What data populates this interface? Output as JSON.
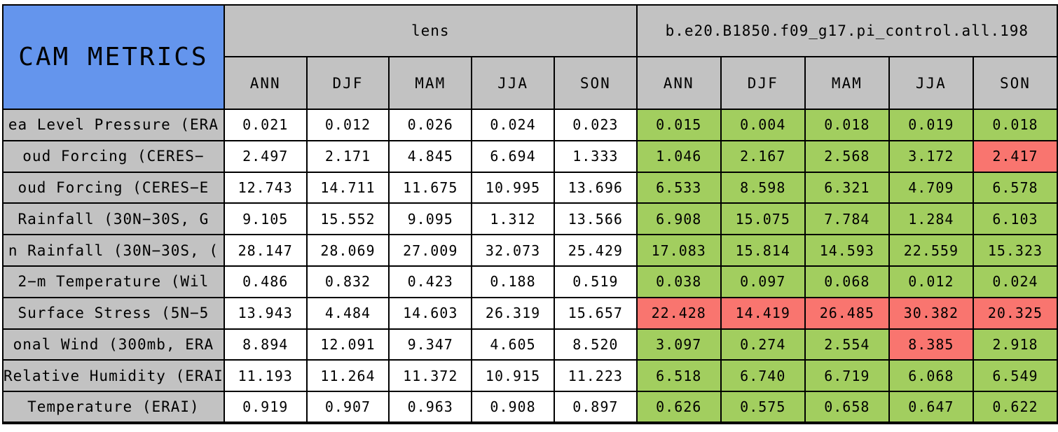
{
  "colors": {
    "title_bg": "#6495ed",
    "head_bg": "#c2c2c2",
    "good": "#a2ce5f",
    "bad": "#f9756f",
    "border": "#000000",
    "cell_bg": "#ffffff",
    "text": "#000000"
  },
  "chart_data": {
    "type": "table",
    "title": "CAM METRICS",
    "column_groups": [
      "lens",
      "b.e20.B1850.f09_g17.pi_control.all.198"
    ],
    "columns": [
      "ANN",
      "DJF",
      "MAM",
      "JJA",
      "SON"
    ],
    "legend_note_colors": {
      "better": "#a2ce5f",
      "worse": "#f9756f"
    },
    "rows": [
      {
        "label": "ea Level Pressure (ERA",
        "lens": [
          "0.021",
          "0.012",
          "0.026",
          "0.024",
          "0.023"
        ],
        "control": [
          "0.015",
          "0.004",
          "0.018",
          "0.019",
          "0.018"
        ],
        "control_flags": [
          "better",
          "better",
          "better",
          "better",
          "better"
        ]
      },
      {
        "label": "oud Forcing (CERES−",
        "lens": [
          "2.497",
          "2.171",
          "4.845",
          "6.694",
          "1.333"
        ],
        "control": [
          "1.046",
          "2.167",
          "2.568",
          "3.172",
          "2.417"
        ],
        "control_flags": [
          "better",
          "better",
          "better",
          "better",
          "worse"
        ]
      },
      {
        "label": "oud Forcing (CERES−E",
        "lens": [
          "12.743",
          "14.711",
          "11.675",
          "10.995",
          "13.696"
        ],
        "control": [
          "6.533",
          "8.598",
          "6.321",
          "4.709",
          "6.578"
        ],
        "control_flags": [
          "better",
          "better",
          "better",
          "better",
          "better"
        ]
      },
      {
        "label": "Rainfall (30N−30S, G",
        "lens": [
          "9.105",
          "15.552",
          "9.095",
          "1.312",
          "13.566"
        ],
        "control": [
          "6.908",
          "15.075",
          "7.784",
          "1.284",
          "6.103"
        ],
        "control_flags": [
          "better",
          "better",
          "better",
          "better",
          "better"
        ]
      },
      {
        "label": "n Rainfall (30N−30S, (",
        "lens": [
          "28.147",
          "28.069",
          "27.009",
          "32.073",
          "25.429"
        ],
        "control": [
          "17.083",
          "15.814",
          "14.593",
          "22.559",
          "15.323"
        ],
        "control_flags": [
          "better",
          "better",
          "better",
          "better",
          "better"
        ]
      },
      {
        "label": "2−m Temperature (Wil",
        "lens": [
          "0.486",
          "0.832",
          "0.423",
          "0.188",
          "0.519"
        ],
        "control": [
          "0.038",
          "0.097",
          "0.068",
          "0.012",
          "0.024"
        ],
        "control_flags": [
          "better",
          "better",
          "better",
          "better",
          "better"
        ]
      },
      {
        "label": "Surface Stress (5N−5",
        "lens": [
          "13.943",
          "4.484",
          "14.603",
          "26.319",
          "15.657"
        ],
        "control": [
          "22.428",
          "14.419",
          "26.485",
          "30.382",
          "20.325"
        ],
        "control_flags": [
          "worse",
          "worse",
          "worse",
          "worse",
          "worse"
        ]
      },
      {
        "label": "onal Wind (300mb, ERA",
        "lens": [
          "8.894",
          "12.091",
          "9.347",
          "4.605",
          "8.520"
        ],
        "control": [
          "3.097",
          "0.274",
          "2.554",
          "8.385",
          "2.918"
        ],
        "control_flags": [
          "better",
          "better",
          "better",
          "worse",
          "better"
        ]
      },
      {
        "label": "Relative Humidity (ERAI",
        "lens": [
          "11.193",
          "11.264",
          "11.372",
          "10.915",
          "11.223"
        ],
        "control": [
          "6.518",
          "6.740",
          "6.719",
          "6.068",
          "6.549"
        ],
        "control_flags": [
          "better",
          "better",
          "better",
          "better",
          "better"
        ]
      },
      {
        "label": "Temperature (ERAI)",
        "lens": [
          "0.919",
          "0.907",
          "0.963",
          "0.908",
          "0.897"
        ],
        "control": [
          "0.626",
          "0.575",
          "0.658",
          "0.647",
          "0.622"
        ],
        "control_flags": [
          "better",
          "better",
          "better",
          "better",
          "better"
        ]
      }
    ]
  }
}
